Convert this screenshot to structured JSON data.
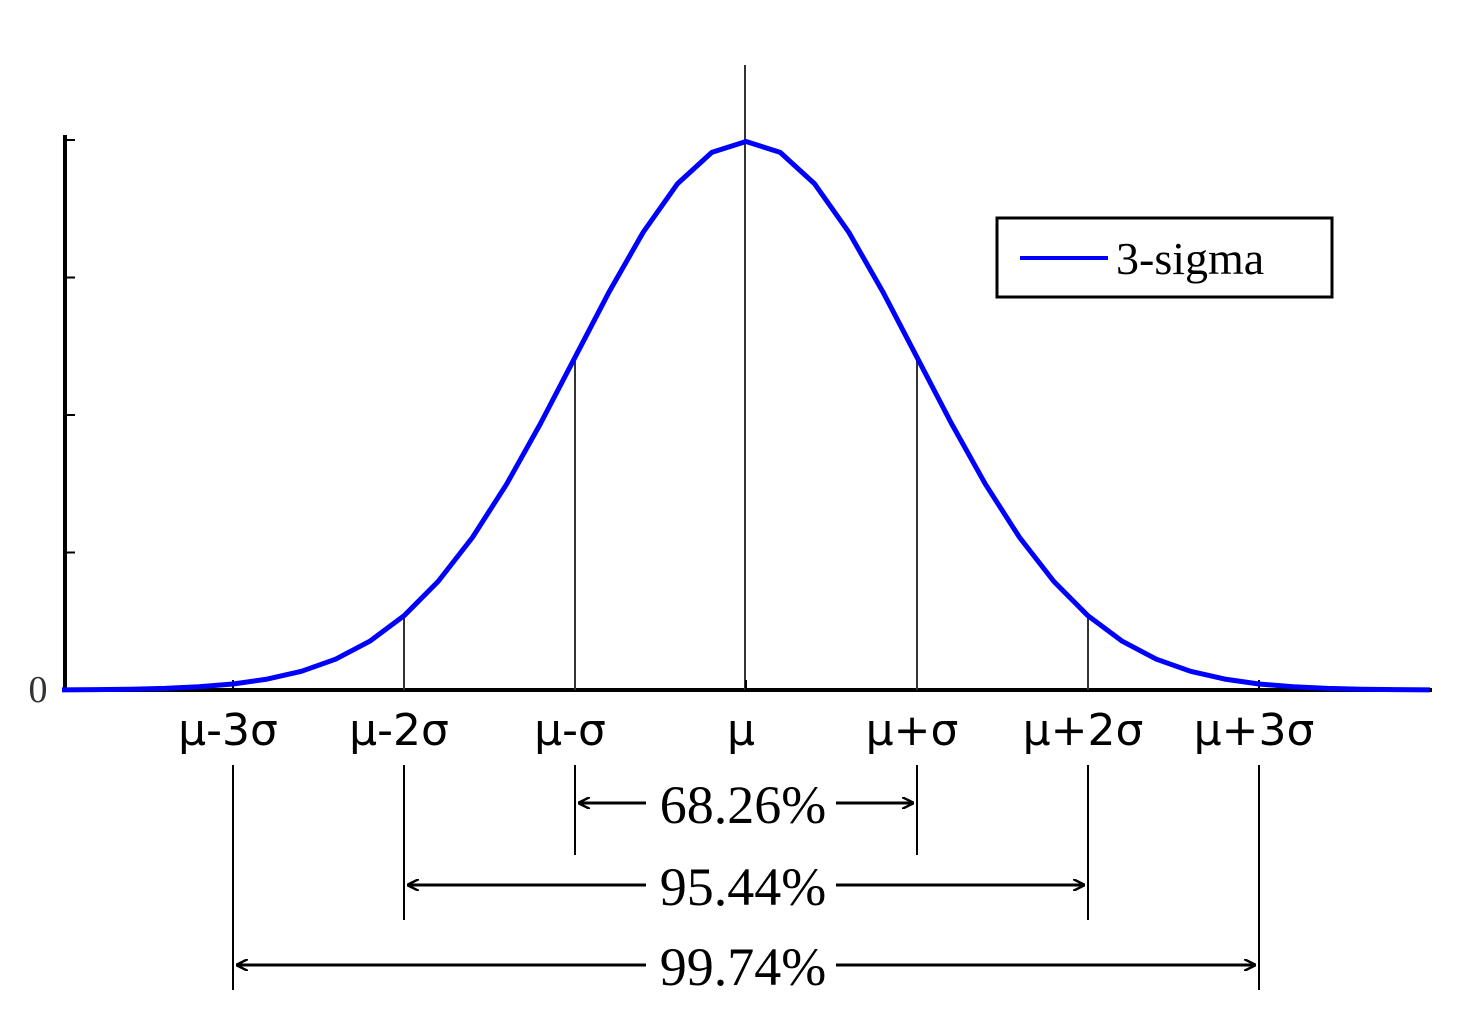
{
  "chart_data": {
    "type": "line",
    "x": [
      -4,
      -3.8,
      -3.6,
      -3.4,
      -3.2,
      -3,
      -2.8,
      -2.6,
      -2.4,
      -2.2,
      -2,
      -1.8,
      -1.6,
      -1.4,
      -1.2,
      -1,
      -0.8,
      -0.6,
      -0.4,
      -0.2,
      0,
      0.2,
      0.4,
      0.6,
      0.8,
      1,
      1.2,
      1.4,
      1.6,
      1.8,
      2,
      2.2,
      2.4,
      2.6,
      2.8,
      3,
      3.2,
      3.4,
      3.6,
      3.8,
      4
    ],
    "series": [
      {
        "name": "3-sigma",
        "color": "#0000ff",
        "values": [
          0.0001,
          0.0003,
          0.0006,
          0.0012,
          0.0024,
          0.0044,
          0.0079,
          0.0136,
          0.0224,
          0.0355,
          0.054,
          0.079,
          0.1109,
          0.1497,
          0.1942,
          0.242,
          0.2897,
          0.3332,
          0.3683,
          0.391,
          0.3989,
          0.391,
          0.3683,
          0.3332,
          0.2897,
          0.242,
          0.1942,
          0.1497,
          0.1109,
          0.079,
          0.054,
          0.0355,
          0.0224,
          0.0136,
          0.0079,
          0.0044,
          0.0024,
          0.0012,
          0.0006,
          0.0003,
          0.0001
        ]
      }
    ],
    "xlim": [
      -4,
      4
    ],
    "xticks": [
      {
        "value": -3,
        "label": "μ-3σ"
      },
      {
        "value": -2,
        "label": "μ-2σ"
      },
      {
        "value": -1,
        "label": "μ-σ"
      },
      {
        "value": 0,
        "label": "μ"
      },
      {
        "value": 1,
        "label": "μ+σ"
      },
      {
        "value": 2,
        "label": "μ+2σ"
      },
      {
        "value": 3,
        "label": "μ+3σ"
      }
    ],
    "ylim": [
      0,
      0.4
    ],
    "yticks": [
      0
    ],
    "minor_yticks": [
      0.1,
      0.2,
      0.3,
      0.4
    ],
    "legend": "upper right",
    "annotations": [
      {
        "from": -1,
        "to": 1,
        "label": "68.26%"
      },
      {
        "from": -2,
        "to": 2,
        "label": "95.44%"
      },
      {
        "from": -3,
        "to": 3,
        "label": "99.74%"
      }
    ]
  }
}
